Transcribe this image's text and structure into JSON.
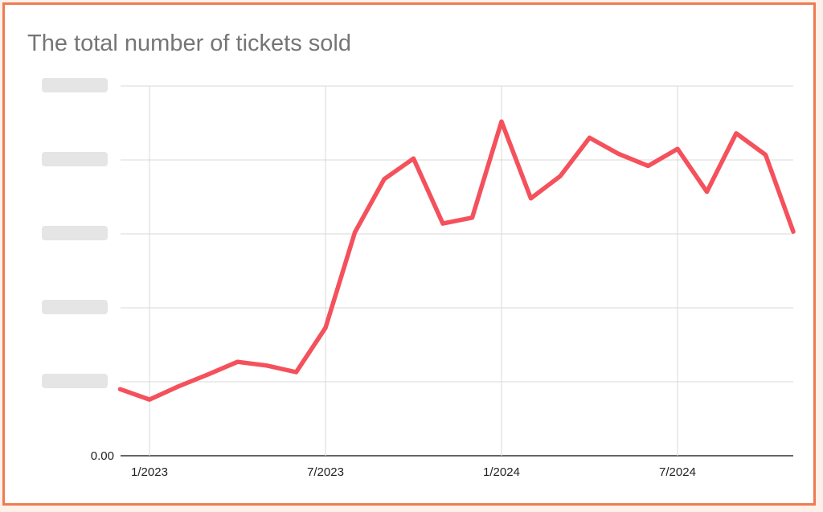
{
  "chart_data": {
    "type": "line",
    "title": "The total number of tickets sold",
    "xlabel": "",
    "ylabel": "",
    "x_tick_labels": [
      "1/2023",
      "7/2023",
      "1/2024",
      "7/2024"
    ],
    "y_tick_labels": [
      "0.00"
    ],
    "y_tick_labels_obscured": true,
    "ylim": [
      0,
      5
    ],
    "grid": true,
    "legend": "none",
    "series": [
      {
        "color": "#f4515c",
        "x": [
          "12/2022",
          "1/2023",
          "2/2023",
          "3/2023",
          "4/2023",
          "5/2023",
          "6/2023",
          "7/2023",
          "8/2023",
          "9/2023",
          "10/2023",
          "11/2023",
          "12/2023",
          "1/2024",
          "2/2024",
          "3/2024",
          "4/2024",
          "5/2024",
          "6/2024",
          "7/2024",
          "8/2024",
          "9/2024",
          "10/2024",
          "11/2024"
        ],
        "values": [
          0.9,
          0.76,
          0.94,
          1.1,
          1.27,
          1.22,
          1.13,
          1.73,
          3.02,
          3.74,
          4.02,
          3.14,
          3.22,
          4.52,
          3.48,
          3.78,
          4.3,
          4.08,
          3.92,
          4.15,
          3.57,
          4.36,
          4.07,
          3.03
        ]
      }
    ]
  }
}
